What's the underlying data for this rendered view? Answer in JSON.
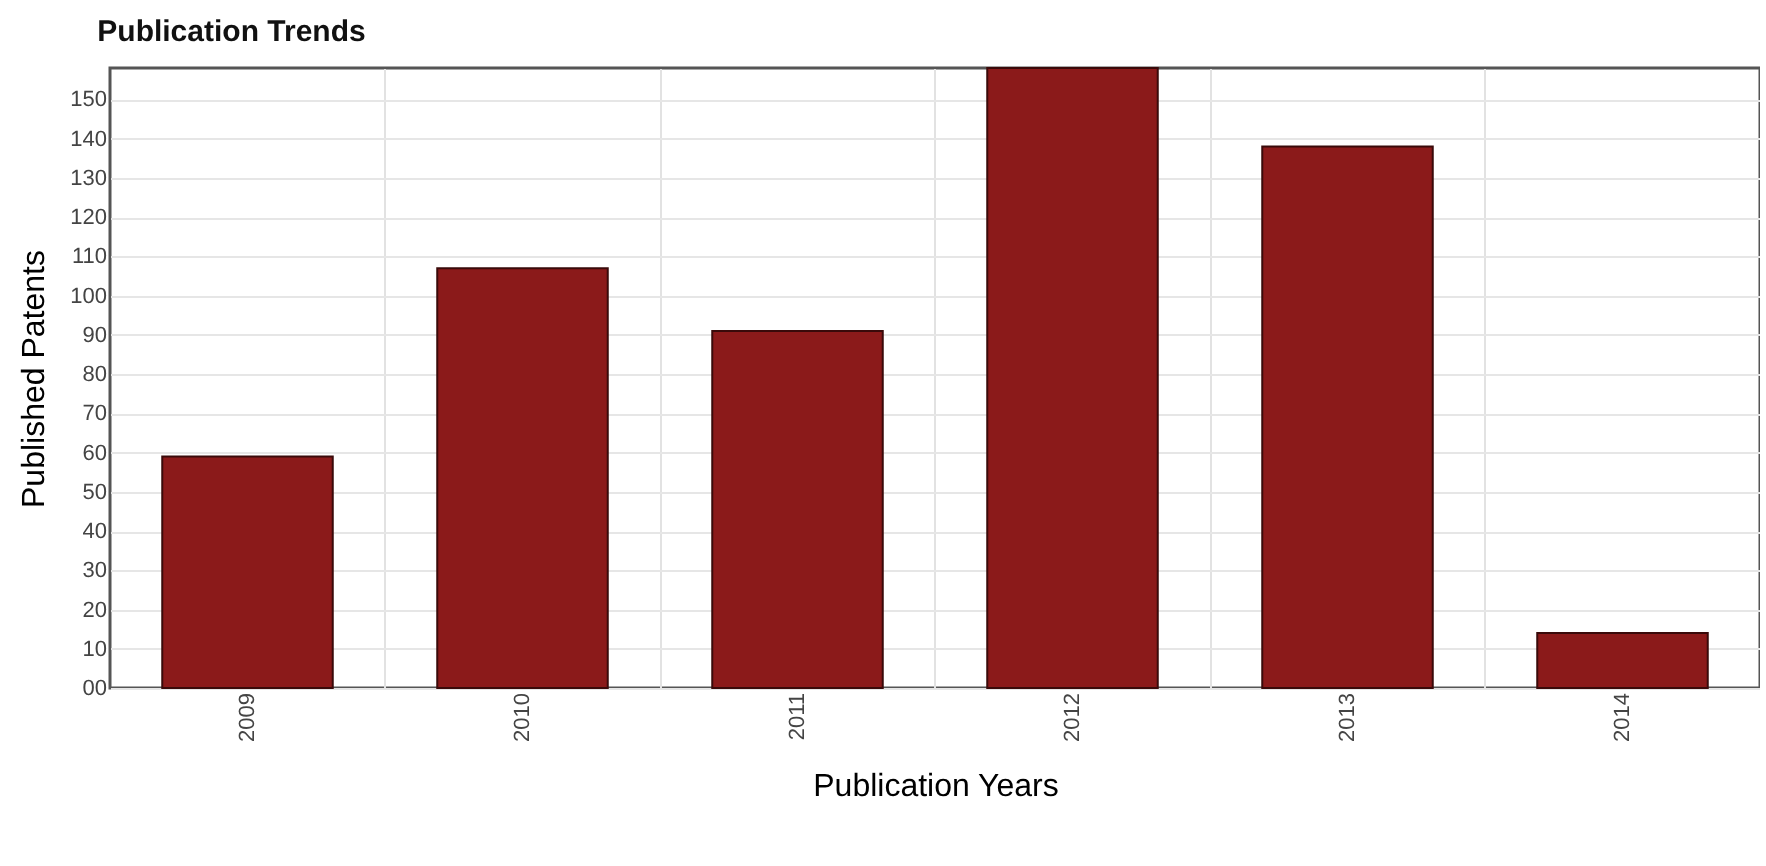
{
  "chart_data": {
    "type": "bar",
    "title": "Publication Trends",
    "xlabel": "Publication Years",
    "ylabel": "Published Patents",
    "categories": [
      "2009",
      "2010",
      "2011",
      "2012",
      "2013",
      "2014"
    ],
    "values": [
      59,
      107,
      91,
      158,
      138,
      14
    ],
    "color": "#8b1a1a",
    "ylim": [
      0,
      158
    ],
    "yticks": [
      {
        "value": 0,
        "label": "00"
      },
      10,
      20,
      30,
      40,
      50,
      60,
      70,
      80,
      90,
      100,
      110,
      120,
      130,
      140,
      150
    ],
    "grid": true
  }
}
